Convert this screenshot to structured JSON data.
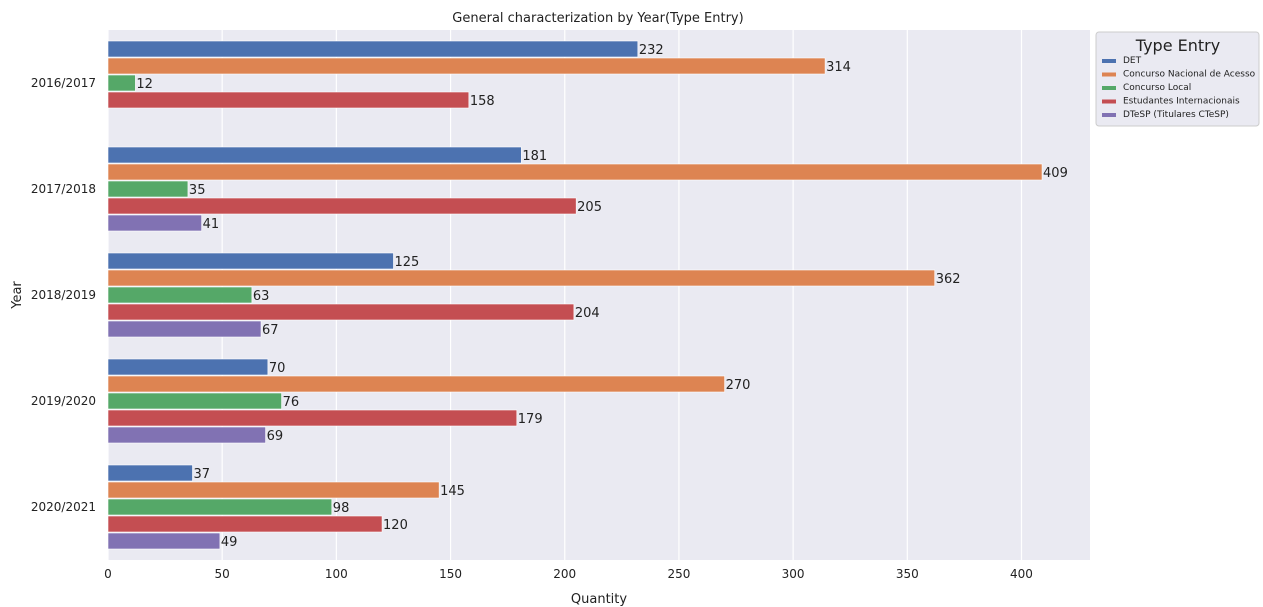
{
  "chart_data": {
    "type": "bar",
    "orientation": "horizontal",
    "title": "General characterization by Year(Type Entry)",
    "xlabel": "Quantity",
    "ylabel": "Year",
    "xlim": [
      0,
      430
    ],
    "xticks": [
      0,
      50,
      100,
      150,
      200,
      250,
      300,
      350,
      400
    ],
    "grid": true,
    "legend_title": "Type Entry",
    "legend_placement": "outside-top-right",
    "categories": [
      "2016/2017",
      "2017/2018",
      "2018/2019",
      "2019/2020",
      "2020/2021"
    ],
    "series": [
      {
        "name": "DET",
        "color": "#4c72b0",
        "values": [
          232,
          181,
          125,
          70,
          37
        ]
      },
      {
        "name": "Concurso Nacional de Acesso",
        "color": "#dd8452",
        "values": [
          314,
          409,
          362,
          270,
          145
        ]
      },
      {
        "name": "Concurso Local",
        "color": "#55a868",
        "values": [
          12,
          35,
          63,
          76,
          98
        ]
      },
      {
        "name": "Estudantes Internacionais",
        "color": "#c44e52",
        "values": [
          158,
          205,
          204,
          179,
          120
        ]
      },
      {
        "name": "DTeSP (Titulares CTeSP)",
        "color": "#8172b3",
        "values": [
          null,
          41,
          67,
          69,
          49
        ]
      }
    ]
  }
}
